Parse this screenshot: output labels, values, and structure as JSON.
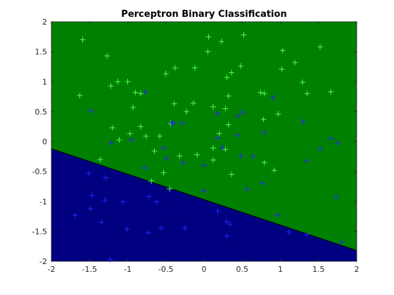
{
  "chart_data": {
    "type": "scatter",
    "title": "Perceptron Binary Classification",
    "xlim": [
      -2,
      2
    ],
    "ylim": [
      -2,
      2
    ],
    "xticks": [
      -2,
      -1.5,
      -1,
      -0.5,
      0,
      0.5,
      1,
      1.5,
      2
    ],
    "yticks": [
      -2,
      -1.5,
      -1,
      -0.5,
      0,
      0.5,
      1,
      1.5,
      2
    ],
    "boundary": {
      "x": [
        -2,
        2
      ],
      "y": [
        -0.12,
        -1.82
      ],
      "color": "#000000",
      "above_color": "#008000",
      "below_color": "#000080"
    },
    "series": [
      {
        "color": "#4dff4d",
        "x": [
          -1.59,
          0.06,
          0.52,
          0.23,
          0.05,
          1.52,
          -1.27,
          1.03,
          1.19,
          0.48,
          -0.38,
          -0.12,
          -0.5,
          1.02,
          0.3,
          0.36,
          -1.13,
          -1.0,
          -1.22,
          1.29,
          -1.63,
          -0.9,
          -0.83,
          0.32,
          0.74,
          0.79,
          1.66,
          1.35,
          -0.93,
          -0.39,
          -0.14,
          0.12,
          0.28,
          -0.23,
          0.97,
          -1.2,
          -0.83,
          -0.97,
          -0.76,
          0.32,
          0.2,
          -0.44,
          -1.11,
          -0.58,
          0.78,
          -0.65,
          -0.32,
          0.12,
          0.79,
          0.92,
          0.36,
          -0.53,
          -1.36,
          -0.69,
          -0.45,
          0.12,
          0.28,
          -0.09
        ],
        "y": [
          1.7,
          1.75,
          1.78,
          1.67,
          1.5,
          1.58,
          1.43,
          1.52,
          1.32,
          1.26,
          1.23,
          1.23,
          1.13,
          1.21,
          1.07,
          1.15,
          1.0,
          1.0,
          0.93,
          0.99,
          0.77,
          0.82,
          0.8,
          0.76,
          0.82,
          0.8,
          0.83,
          0.8,
          0.57,
          0.63,
          0.64,
          0.58,
          0.55,
          0.5,
          0.46,
          0.23,
          0.25,
          0.13,
          0.09,
          0.28,
          0.13,
          0.3,
          0.03,
          0.09,
          0.37,
          -0.16,
          -0.24,
          -0.31,
          -0.35,
          -0.48,
          -0.55,
          -0.52,
          -0.3,
          -0.66,
          -0.79,
          -0.11,
          -0.13,
          -0.22
        ]
      },
      {
        "color": "#2626ff",
        "x": [
          -1.48,
          -0.77,
          0.9,
          1.3,
          0.51,
          0.44,
          0.17,
          -0.41,
          -0.29,
          -0.42,
          0.79,
          0.44,
          -0.95,
          -1.21,
          -0.53,
          0.18,
          0.24,
          0.64,
          0.48,
          1.52,
          1.75,
          1.66,
          1.34,
          -0.49,
          -0.27,
          0.0,
          -0.78,
          -1.51,
          -1.29,
          0.0,
          0.57,
          0.76,
          -1.47,
          -0.72,
          1.73,
          -1.3,
          -0.62,
          -1.06,
          -1.49,
          -1.69,
          0.18,
          0.3,
          0.96,
          -1.34,
          -1.01,
          -0.25,
          -0.56,
          -0.73,
          0.3,
          1.11,
          1.35,
          1.8,
          -1.23,
          0.34
        ],
        "y": [
          0.51,
          0.83,
          0.73,
          0.33,
          0.49,
          0.43,
          0.47,
          0.3,
          0.31,
          0.32,
          0.15,
          0.1,
          0.03,
          -0.02,
          -0.11,
          0.06,
          -0.1,
          -0.25,
          -0.24,
          -0.12,
          -0.03,
          0.05,
          -0.32,
          -0.28,
          -0.35,
          -0.4,
          -0.44,
          -0.53,
          -0.6,
          -0.83,
          -0.8,
          -0.7,
          -0.9,
          -0.92,
          -0.93,
          -0.98,
          -1.01,
          -1.01,
          -1.12,
          -1.23,
          -1.16,
          -1.34,
          -1.23,
          -1.35,
          -1.46,
          -1.44,
          -1.44,
          -1.52,
          -1.58,
          -1.51,
          -1.55,
          -1.68,
          -1.97,
          -1.38
        ]
      }
    ]
  }
}
